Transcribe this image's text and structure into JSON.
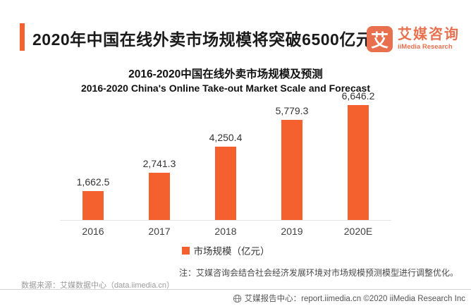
{
  "header": {
    "title": "2020年中国在线外卖市场规模将突破6500亿元",
    "logo": {
      "glyph": "艾",
      "name_cn": "艾媒咨询",
      "name_en": "iiMedia Research"
    }
  },
  "chart_data": {
    "type": "bar",
    "title_cn": "2016-2020中国在线外卖市场规模及预测",
    "title_en": "2016-2020 China's Online Take-out Market Scale and Forecast",
    "categories": [
      "2016",
      "2017",
      "2018",
      "2019",
      "2020E"
    ],
    "values": [
      1662.5,
      2741.3,
      4250.4,
      5779.3,
      6646.2
    ],
    "value_labels": [
      "1,662.5",
      "2,741.3",
      "4,250.4",
      "5,779.3",
      "6,646.2"
    ],
    "legend": "市场规模（亿元）",
    "ylabel": "亿元",
    "ylim": [
      0,
      7000
    ],
    "grid": false,
    "legend_position": "bottom",
    "bar_color": "#F4612E"
  },
  "notes": {
    "note": "注：艾媒咨询会结合社会经济发展环境对市场规模预测模型进行调整优化。",
    "source": "数据来源：艾媒数据中心（data.iimedia.cn）"
  },
  "footer": {
    "text": "艾媒报告中心：report.iimedia.cn  ©2020  iiMedia Research Inc"
  },
  "colors": {
    "accent": "#F4612E",
    "logo": "#E8704E"
  }
}
